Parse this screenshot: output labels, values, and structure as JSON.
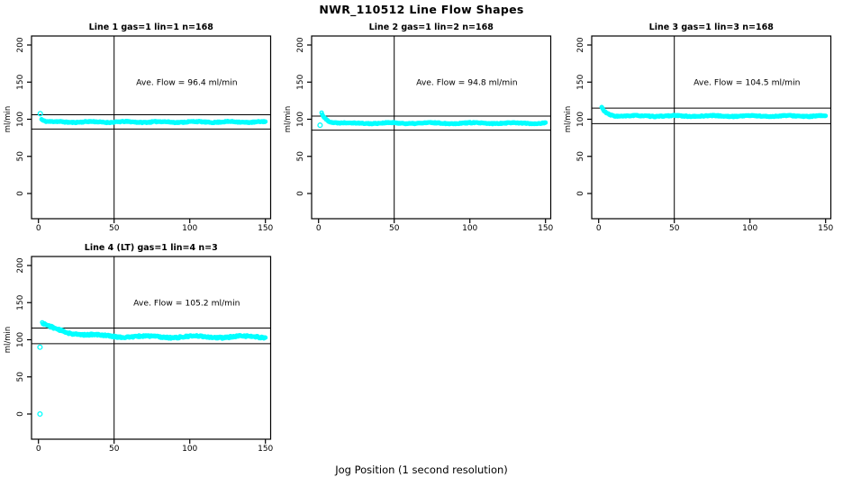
{
  "page": {
    "title": "NWR_110512  Line Flow Shapes",
    "xlabel": "Jog Position (1 second resolution)",
    "background": "#ffffff"
  },
  "colors": {
    "points": "#00ffff",
    "axis": "#000000",
    "text": "#000000"
  },
  "chart_data": [
    {
      "type": "scatter",
      "id": "line1",
      "grid": {
        "row": 0,
        "col": 0
      },
      "title": "Line 1 gas=1 lin=1 n=168",
      "n": 168,
      "ylabel": "ml/min",
      "annotation": "Ave. Flow =  96.4  ml/min",
      "annotation_pos": {
        "x": 98,
        "y": 150
      },
      "ave_flow": 96.4,
      "ref_lines": {
        "upper": 106.0,
        "lower": 86.8,
        "vertical_x": 50
      },
      "x_ticks": [
        0,
        50,
        100,
        150
      ],
      "y_ticks": [
        0,
        50,
        100,
        150,
        200
      ],
      "xlim": [
        -4.6,
        153.5
      ],
      "ylim": [
        -34,
        212
      ],
      "grid_on": false,
      "series": {
        "x_start": 2,
        "x_end": 150,
        "step": 0.5,
        "start_value": 100.5,
        "plateau": 96.3,
        "tau": 2.0,
        "noise": 1.0,
        "wobble_amp": 0.6,
        "wobble_period": 23,
        "seed": 11
      },
      "outliers": [
        {
          "x": 1.2,
          "y": 107.5
        }
      ]
    },
    {
      "type": "scatter",
      "id": "line2",
      "grid": {
        "row": 0,
        "col": 1
      },
      "title": "Line 2 gas=1 lin=2 n=168",
      "n": 168,
      "ylabel": "ml/min",
      "annotation": "Ave. Flow =  94.8  ml/min",
      "annotation_pos": {
        "x": 98,
        "y": 150
      },
      "ave_flow": 94.8,
      "ref_lines": {
        "upper": 104.3,
        "lower": 85.3,
        "vertical_x": 50
      },
      "x_ticks": [
        0,
        50,
        100,
        150
      ],
      "y_ticks": [
        0,
        50,
        100,
        150,
        200
      ],
      "xlim": [
        -4.6,
        153.5
      ],
      "ylim": [
        -34,
        212
      ],
      "grid_on": false,
      "series": {
        "x_start": 2,
        "x_end": 150,
        "step": 0.5,
        "start_value": 109,
        "plateau": 94.7,
        "tau": 3.2,
        "noise": 1.0,
        "wobble_amp": 0.6,
        "wobble_period": 27,
        "seed": 22
      },
      "outliers": [
        {
          "x": 1.0,
          "y": 92.0
        }
      ]
    },
    {
      "type": "scatter",
      "id": "line3",
      "grid": {
        "row": 0,
        "col": 2
      },
      "title": "Line 3 gas=1 lin=3 n=168",
      "n": 168,
      "ylabel": "ml/min",
      "annotation": "Ave. Flow =  104.5  ml/min",
      "annotation_pos": {
        "x": 98,
        "y": 150
      },
      "ave_flow": 104.5,
      "ref_lines": {
        "upper": 115.0,
        "lower": 94.1,
        "vertical_x": 50
      },
      "x_ticks": [
        0,
        50,
        100,
        150
      ],
      "y_ticks": [
        0,
        50,
        100,
        150,
        200
      ],
      "xlim": [
        -4.6,
        153.5
      ],
      "ylim": [
        -34,
        212
      ],
      "grid_on": false,
      "series": {
        "x_start": 2,
        "x_end": 150,
        "step": 0.5,
        "start_value": 115.8,
        "plateau": 104.3,
        "tau": 3.0,
        "noise": 1.0,
        "wobble_amp": 0.6,
        "wobble_period": 25,
        "seed": 33
      },
      "outliers": []
    },
    {
      "type": "scatter",
      "id": "line4",
      "grid": {
        "row": 1,
        "col": 0
      },
      "title": "Line 4 (LT) gas=1 lin=4 n=3",
      "n": 3,
      "ylabel": "ml/min",
      "annotation": "Ave. Flow =  105.2  ml/min",
      "annotation_pos": {
        "x": 98,
        "y": 150
      },
      "ave_flow": 105.2,
      "ref_lines": {
        "upper": 115.7,
        "lower": 94.7,
        "vertical_x": 50
      },
      "x_ticks": [
        0,
        50,
        100,
        150
      ],
      "y_ticks": [
        0,
        50,
        100,
        150,
        200
      ],
      "xlim": [
        -4.6,
        153.5
      ],
      "ylim": [
        -34,
        212
      ],
      "grid_on": false,
      "series": {
        "x_start": 2.5,
        "x_end": 150,
        "step": 0.5,
        "start_value": 122,
        "plateau": 103.8,
        "tau": 16,
        "noise": 1.7,
        "wobble_amp": 1.1,
        "wobble_period": 32,
        "seed": 44
      },
      "outliers": [
        {
          "x": 1.0,
          "y": 90.0
        },
        {
          "x": 1.0,
          "y": 0.0
        }
      ]
    }
  ]
}
